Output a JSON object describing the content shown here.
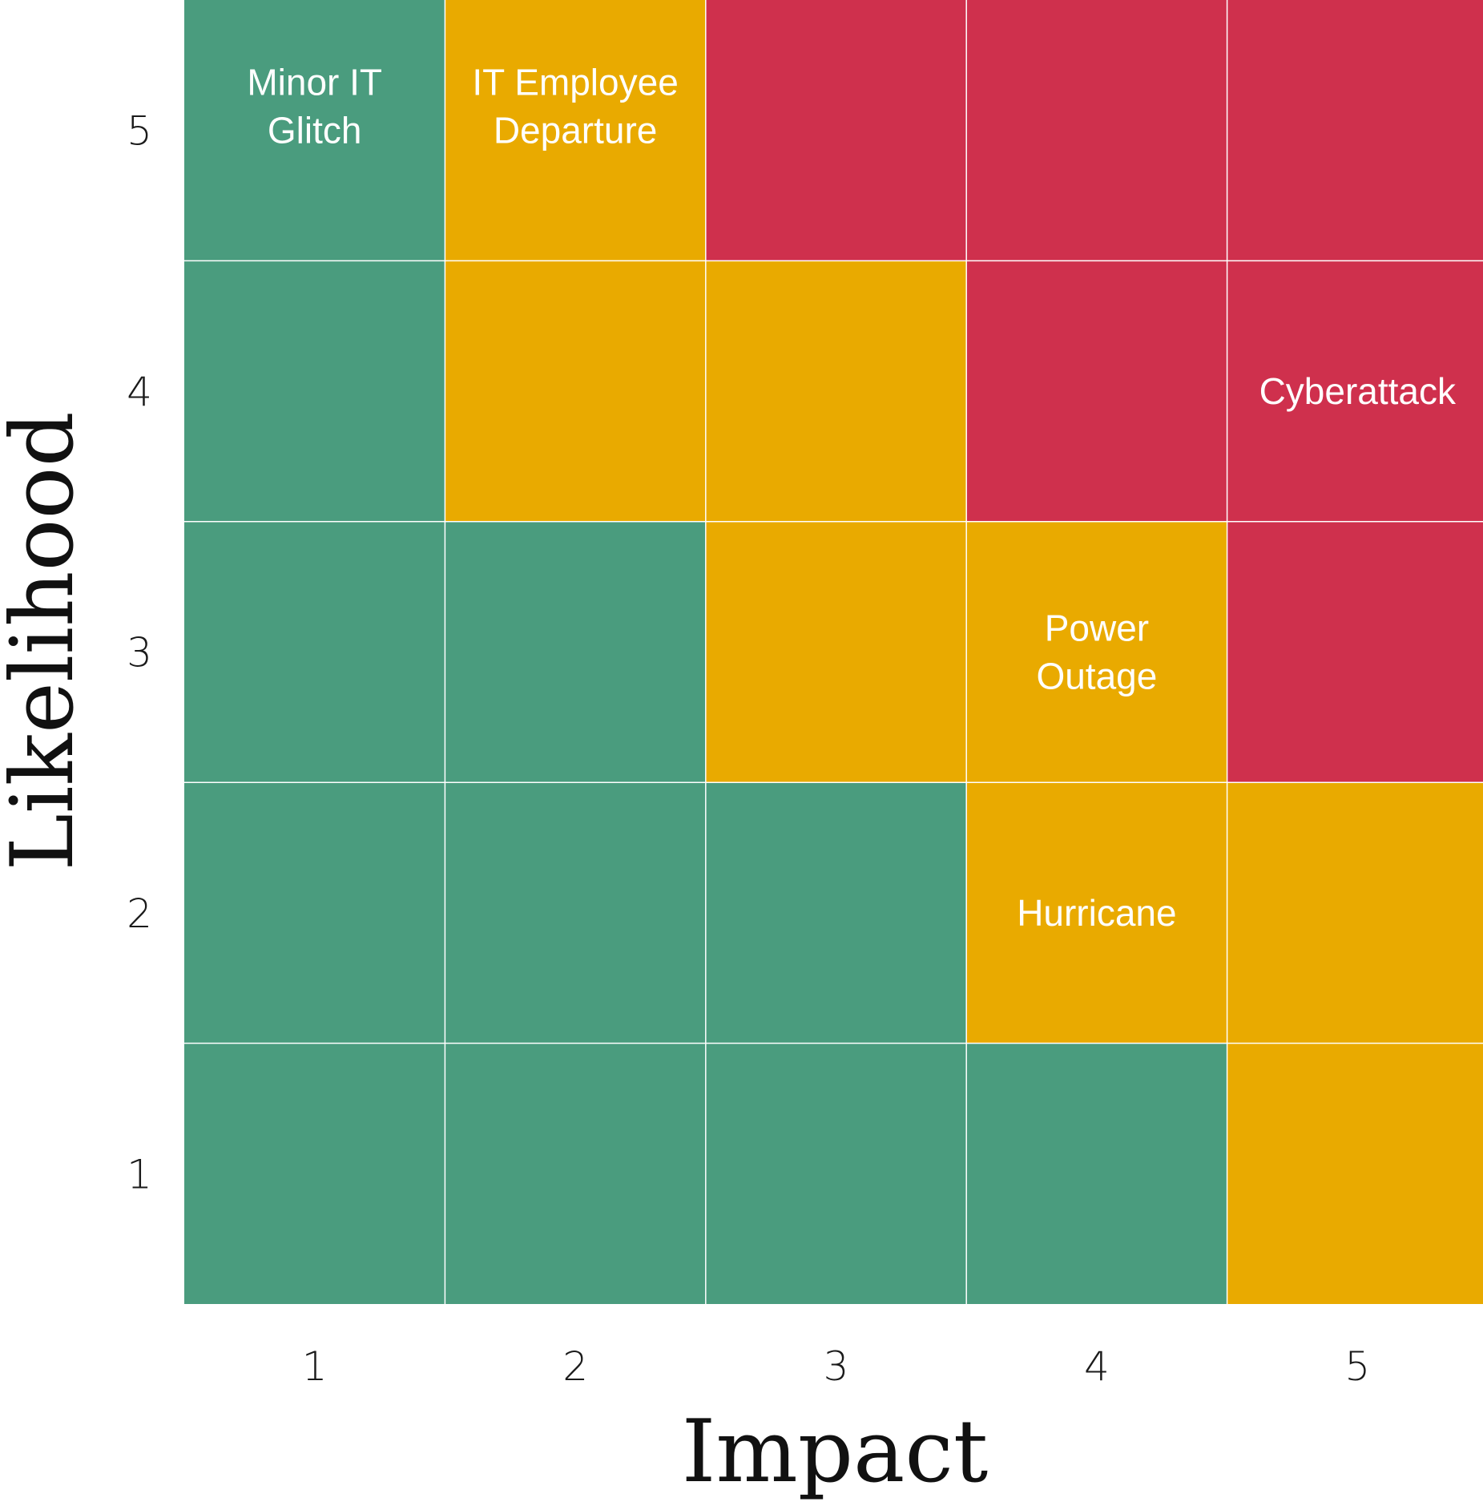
{
  "chart_data": {
    "type": "heatmap",
    "title": "",
    "xlabel": "Impact",
    "ylabel": "Likelihood",
    "x_ticks": [
      "1",
      "2",
      "3",
      "4",
      "5"
    ],
    "y_ticks": [
      "1",
      "2",
      "3",
      "4",
      "5"
    ],
    "colors": {
      "low": "#4a9c7e",
      "medium": "#e9aa00",
      "high": "#cf304d",
      "grid": "#ffffff"
    },
    "matrix": [
      [
        "low",
        "low",
        "low",
        "low",
        "medium"
      ],
      [
        "low",
        "low",
        "low",
        "medium",
        "medium"
      ],
      [
        "low",
        "low",
        "medium",
        "medium",
        "high"
      ],
      [
        "low",
        "medium",
        "medium",
        "high",
        "high"
      ],
      [
        "low",
        "medium",
        "high",
        "high",
        "high"
      ]
    ],
    "matrix_note": "matrix rows indexed by likelihood 1..5, columns by impact 1..5",
    "annotations": [
      {
        "impact": 1,
        "likelihood": 5,
        "lines": [
          "Minor IT",
          "Glitch"
        ]
      },
      {
        "impact": 2,
        "likelihood": 5,
        "lines": [
          "IT Employee",
          "Departure"
        ]
      },
      {
        "impact": 5,
        "likelihood": 4,
        "lines": [
          "Cyberattack"
        ]
      },
      {
        "impact": 4,
        "likelihood": 3,
        "lines": [
          "Power",
          "Outage"
        ]
      },
      {
        "impact": 4,
        "likelihood": 2,
        "lines": [
          "Hurricane"
        ]
      }
    ]
  }
}
